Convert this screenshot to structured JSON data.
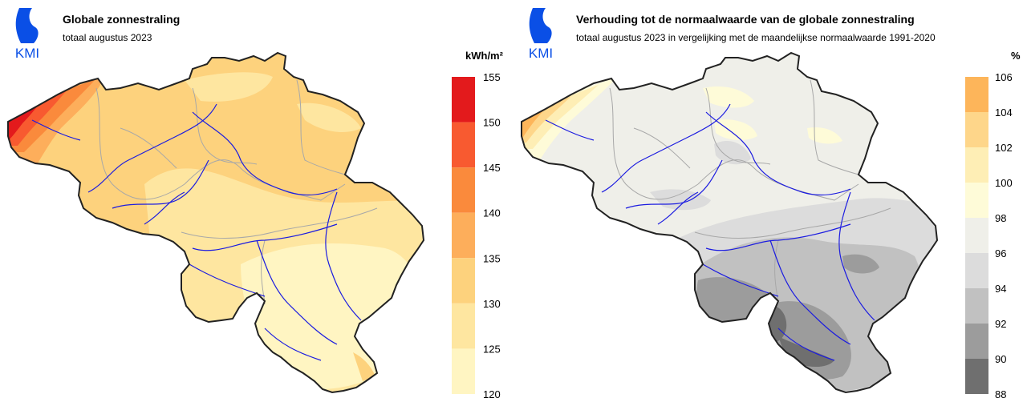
{
  "left_panel": {
    "logo_text": "KMI",
    "title": "Globale zonnestraling",
    "subtitle": "totaal augustus 2023",
    "unit": "kWh/m²",
    "legend": {
      "ticks": [
        "155",
        "150",
        "145",
        "140",
        "135",
        "130",
        "125",
        "120"
      ],
      "colors": [
        "#e31a1c",
        "#f85a30",
        "#fa8a3c",
        "#fdae5b",
        "#fdd27d",
        "#fee6a0",
        "#fff5c2"
      ]
    }
  },
  "right_panel": {
    "logo_text": "KMI",
    "title": "Verhouding tot de normaalwaarde van de globale zonnestraling",
    "subtitle": "totaal augustus 2023 in vergelijking met de maandelijkse normaalwaarde 1991-2020",
    "unit": "%",
    "legend": {
      "ticks": [
        "106",
        "104",
        "102",
        "100",
        "98",
        "96",
        "94",
        "92",
        "90",
        "88"
      ],
      "colors": [
        "#fdb55a",
        "#fed68a",
        "#feeeb5",
        "#fefbd8",
        "#efefe9",
        "#dcdcdc",
        "#c1c1c1",
        "#9c9c9c",
        "#6f6f6f"
      ]
    }
  },
  "colors": {
    "border": "#222222",
    "rivers": "#1c1ce0",
    "provinces": "#a8a8a8",
    "logo_blue": "#0a4fe6"
  }
}
